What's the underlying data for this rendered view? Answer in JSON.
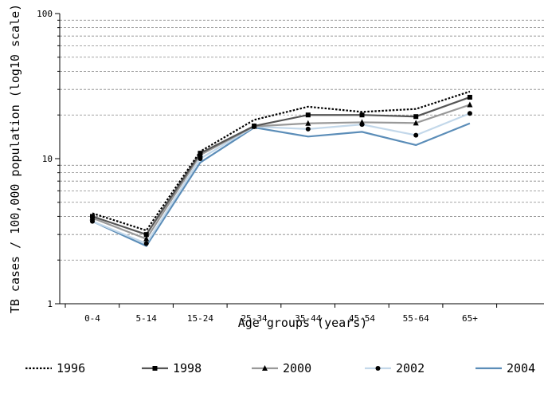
{
  "chart_data": {
    "type": "line",
    "title": "",
    "xlabel": "Age groups (years)",
    "ylabel": "TB cases / 100,000 population (log10 scale)",
    "y_scale": "log10",
    "ylim": [
      1,
      100
    ],
    "yticks": [
      "1",
      "10",
      "100"
    ],
    "categories": [
      "0-4",
      "5-14",
      "15-24",
      "25-34",
      "35-44",
      "45-54",
      "55-64",
      "65+"
    ],
    "grid": "horizontal dashed minor gridlines",
    "legend_position": "bottom",
    "series": [
      {
        "name": "1996",
        "values": [
          4.2,
          3.2,
          11.2,
          18.5,
          22.8,
          21.0,
          22.0,
          29.0
        ],
        "color": "#000000",
        "style": "dotted",
        "marker": "none"
      },
      {
        "name": "1998",
        "values": [
          4.0,
          3.0,
          10.9,
          16.8,
          20.0,
          20.0,
          19.5,
          26.5
        ],
        "color": "#555555",
        "style": "solid",
        "marker": "square"
      },
      {
        "name": "2000",
        "values": [
          3.9,
          2.8,
          10.6,
          16.7,
          17.5,
          17.8,
          17.6,
          23.5
        ],
        "color": "#999999",
        "style": "solid",
        "marker": "triangle"
      },
      {
        "name": "2002",
        "values": [
          3.7,
          2.6,
          10.0,
          16.6,
          16.0,
          17.2,
          14.5,
          20.5
        ],
        "color": "#c3d8ea",
        "style": "solid",
        "marker": "circle"
      },
      {
        "name": "2004",
        "values": [
          3.7,
          2.5,
          9.4,
          16.4,
          14.2,
          15.3,
          12.4,
          17.5
        ],
        "color": "#5b8db8",
        "style": "solid",
        "marker": "none"
      }
    ]
  }
}
